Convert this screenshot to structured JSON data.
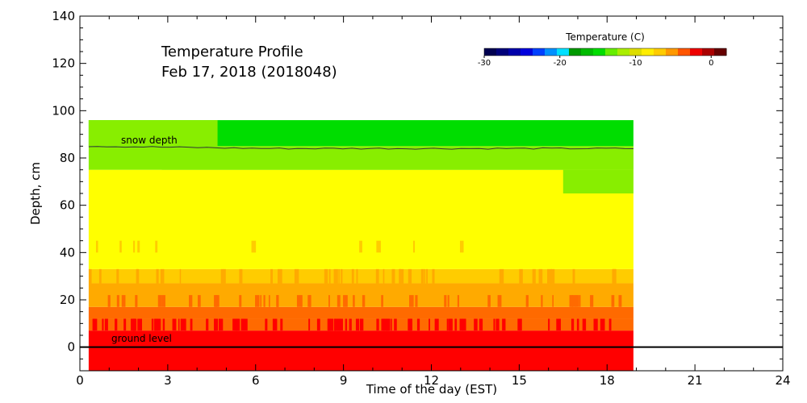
{
  "chart_data": {
    "type": "heatmap",
    "title": "Temperature Profile",
    "subtitle": "Feb 17, 2018 (2018048)",
    "xlabel": "Time of the day (EST)",
    "ylabel": "Depth, cm",
    "xlim": [
      0,
      24
    ],
    "ylim": [
      -10,
      140
    ],
    "xticks": [
      0,
      3,
      6,
      9,
      12,
      15,
      18,
      21,
      24
    ],
    "yticks": [
      0,
      20,
      40,
      60,
      80,
      100,
      120,
      140
    ],
    "colorbar": {
      "title": "Temperature (C)",
      "range": [
        -30,
        2
      ],
      "ticks": [
        -30,
        -20,
        -10,
        0
      ],
      "colors": [
        "#000050",
        "#00007a",
        "#0000aa",
        "#0000dd",
        "#0040ff",
        "#0090ff",
        "#00e0ff",
        "#009900",
        "#00bb00",
        "#00dd00",
        "#66ee00",
        "#aaee00",
        "#dddd00",
        "#ffee00",
        "#ffcc00",
        "#ff9900",
        "#ff5500",
        "#ee0000",
        "#aa0000",
        "#660000"
      ]
    },
    "data_time_range": [
      0.3,
      18.9
    ],
    "temperature_bands": [
      {
        "depth_range": [
          -10,
          7
        ],
        "color": "#ff0000"
      },
      {
        "depth_range": [
          7,
          12
        ],
        "color": "#ff6a00",
        "note": "mixed red"
      },
      {
        "depth_range": [
          12,
          17
        ],
        "color": "#ff6a00"
      },
      {
        "depth_range": [
          17,
          27
        ],
        "color": "#ffaa00"
      },
      {
        "depth_range": [
          27,
          33
        ],
        "color": "#ffcc00"
      },
      {
        "depth_range": [
          33,
          65
        ],
        "color": "#ffff00"
      },
      {
        "depth_range": [
          65,
          75
        ],
        "color": "#ffff00"
      },
      {
        "depth_range": [
          75,
          85
        ],
        "color": "#88ee00"
      },
      {
        "depth_range": [
          85,
          96
        ],
        "color": "#00dd00"
      }
    ],
    "lines": [
      {
        "label": "snow depth",
        "values_cm": [
          85,
          84,
          84,
          84
        ]
      },
      {
        "label": "ground level",
        "value_cm": 0
      }
    ]
  }
}
